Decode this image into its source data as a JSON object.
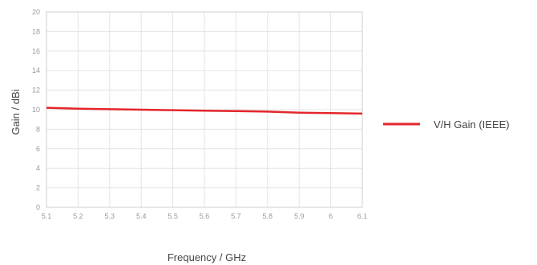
{
  "chart_data": {
    "type": "line",
    "xlabel": "Frequency / GHz",
    "ylabel": "Gain / dBi",
    "xlim": [
      5.1,
      6.1
    ],
    "ylim": [
      0,
      20
    ],
    "x_ticks": [
      "5.1",
      "5.2",
      "5.3",
      "5.4",
      "5.5",
      "5.6",
      "5.7",
      "5.8",
      "5.9",
      "6",
      "6.1"
    ],
    "y_ticks": [
      "0",
      "2",
      "4",
      "6",
      "8",
      "10",
      "12",
      "14",
      "16",
      "18",
      "20"
    ],
    "grid": true,
    "legend_position": "right",
    "series": [
      {
        "name": "V/H Gain (IEEE)",
        "color": "#e3262b",
        "x": [
          5.1,
          5.2,
          5.3,
          5.4,
          5.5,
          5.6,
          5.7,
          5.8,
          5.9,
          6.0,
          6.1
        ],
        "y": [
          10.2,
          10.1,
          10.05,
          10.0,
          9.95,
          9.9,
          9.85,
          9.8,
          9.7,
          9.65,
          9.6
        ]
      }
    ]
  }
}
